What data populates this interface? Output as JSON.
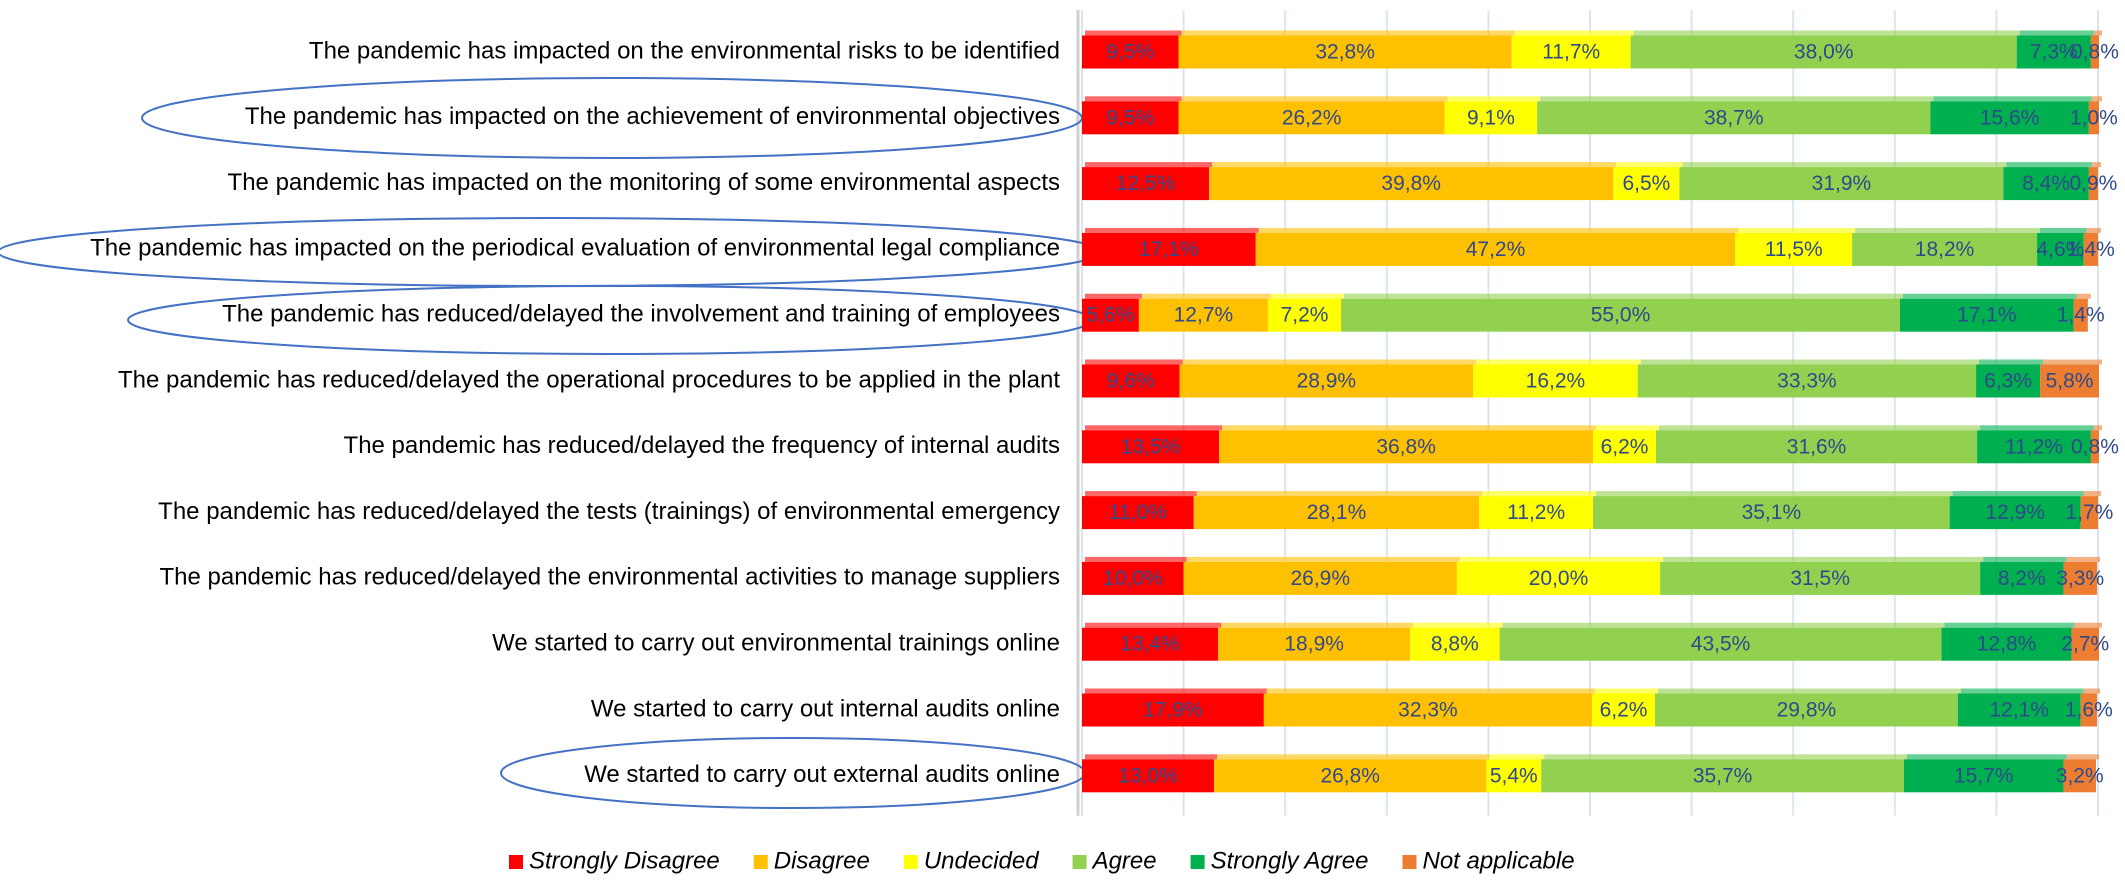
{
  "chart_data": {
    "type": "stacked_bar_horizontal",
    "categories": [
      "The pandemic has impacted on the environmental risks to be identified",
      "The pandemic has impacted on the achievement of environmental objectives",
      "The pandemic has impacted on the monitoring of some environmental aspects",
      "The pandemic has impacted on the periodical evaluation of environmental legal compliance",
      "The pandemic has reduced/delayed the involvement and training of employees",
      "The pandemic has reduced/delayed the operational procedures to be applied in the plant",
      "The pandemic has reduced/delayed the frequency of internal audits",
      "The pandemic has reduced/delayed the tests (trainings) of environmental emergency",
      "The pandemic has reduced/delayed the environmental activities to manage suppliers",
      "We started to carry out environmental trainings online",
      "We started to carry out internal audits online",
      "We started to carry out external audits online"
    ],
    "series": [
      {
        "name": "Strongly Disagree",
        "color": "#ff0000",
        "values": [
          9.5,
          9.5,
          12.5,
          17.1,
          5.6,
          9.6,
          13.5,
          11.0,
          10.0,
          13.4,
          17.9,
          13.0
        ],
        "value_labels": [
          "9,5%",
          "9,5%",
          "12,5%",
          "17,1%",
          "5,6%",
          "9,6%",
          "13,5%",
          "11,0%",
          "10,0%",
          "13,4%",
          "17,9%",
          "13,0%"
        ]
      },
      {
        "name": "Disagree",
        "color": "#ffc000",
        "values": [
          32.8,
          26.2,
          39.8,
          47.2,
          12.7,
          28.9,
          36.8,
          28.1,
          26.9,
          18.9,
          32.3,
          26.8
        ],
        "value_labels": [
          "32,8%",
          "26,2%",
          "39,8%",
          "47,2%",
          "12,7%",
          "28,9%",
          "36,8%",
          "28,1%",
          "26,9%",
          "18,9%",
          "32,3%",
          "26,8%"
        ]
      },
      {
        "name": "Undecided",
        "color": "#ffff00",
        "values": [
          11.7,
          9.1,
          6.5,
          11.5,
          7.2,
          16.2,
          6.2,
          11.2,
          20.0,
          8.8,
          6.2,
          5.4
        ],
        "value_labels": [
          "11,7%",
          "9,1%",
          "6,5%",
          "11,5%",
          "7,2%",
          "16,2%",
          "6,2%",
          "11,2%",
          "20,0%",
          "8,8%",
          "6,2%",
          "5,4%"
        ]
      },
      {
        "name": "Agree",
        "color": "#92d050",
        "values": [
          38.0,
          38.7,
          31.9,
          18.2,
          55.0,
          33.3,
          31.6,
          35.1,
          31.5,
          43.5,
          29.8,
          35.7
        ],
        "value_labels": [
          "38,0%",
          "38,7%",
          "31,9%",
          "18,2%",
          "55,0%",
          "33,3%",
          "31,6%",
          "35,1%",
          "31,5%",
          "43,5%",
          "29,8%",
          "35,7%"
        ]
      },
      {
        "name": "Strongly Agree",
        "color": "#00b050",
        "values": [
          7.3,
          15.6,
          8.4,
          4.6,
          17.1,
          6.3,
          11.2,
          12.9,
          8.2,
          12.8,
          12.1,
          15.7
        ],
        "value_labels": [
          "7,3%",
          "15,6%",
          "8,4%",
          "4,6%",
          "17,1%",
          "6,3%",
          "11,2%",
          "12,9%",
          "8,2%",
          "12,8%",
          "12,1%",
          "15,7%"
        ]
      },
      {
        "name": "Not applicable",
        "color": "#ed7d31",
        "values": [
          0.8,
          1.0,
          0.9,
          1.4,
          1.4,
          5.8,
          0.8,
          1.7,
          3.3,
          2.7,
          1.6,
          3.2
        ],
        "value_labels": [
          "0,8%",
          "1,0%",
          "0,9%",
          "1,4%",
          "1,4%",
          "5,8%",
          "0,8%",
          "1,7%",
          "3,3%",
          "2,7%",
          "1,6%",
          "3,2%"
        ]
      }
    ],
    "xlim": [
      0,
      100
    ],
    "xticks": [
      0,
      10,
      20,
      30,
      40,
      50,
      60,
      70,
      80,
      90,
      100
    ],
    "grid": true,
    "legend": "bottom"
  }
}
